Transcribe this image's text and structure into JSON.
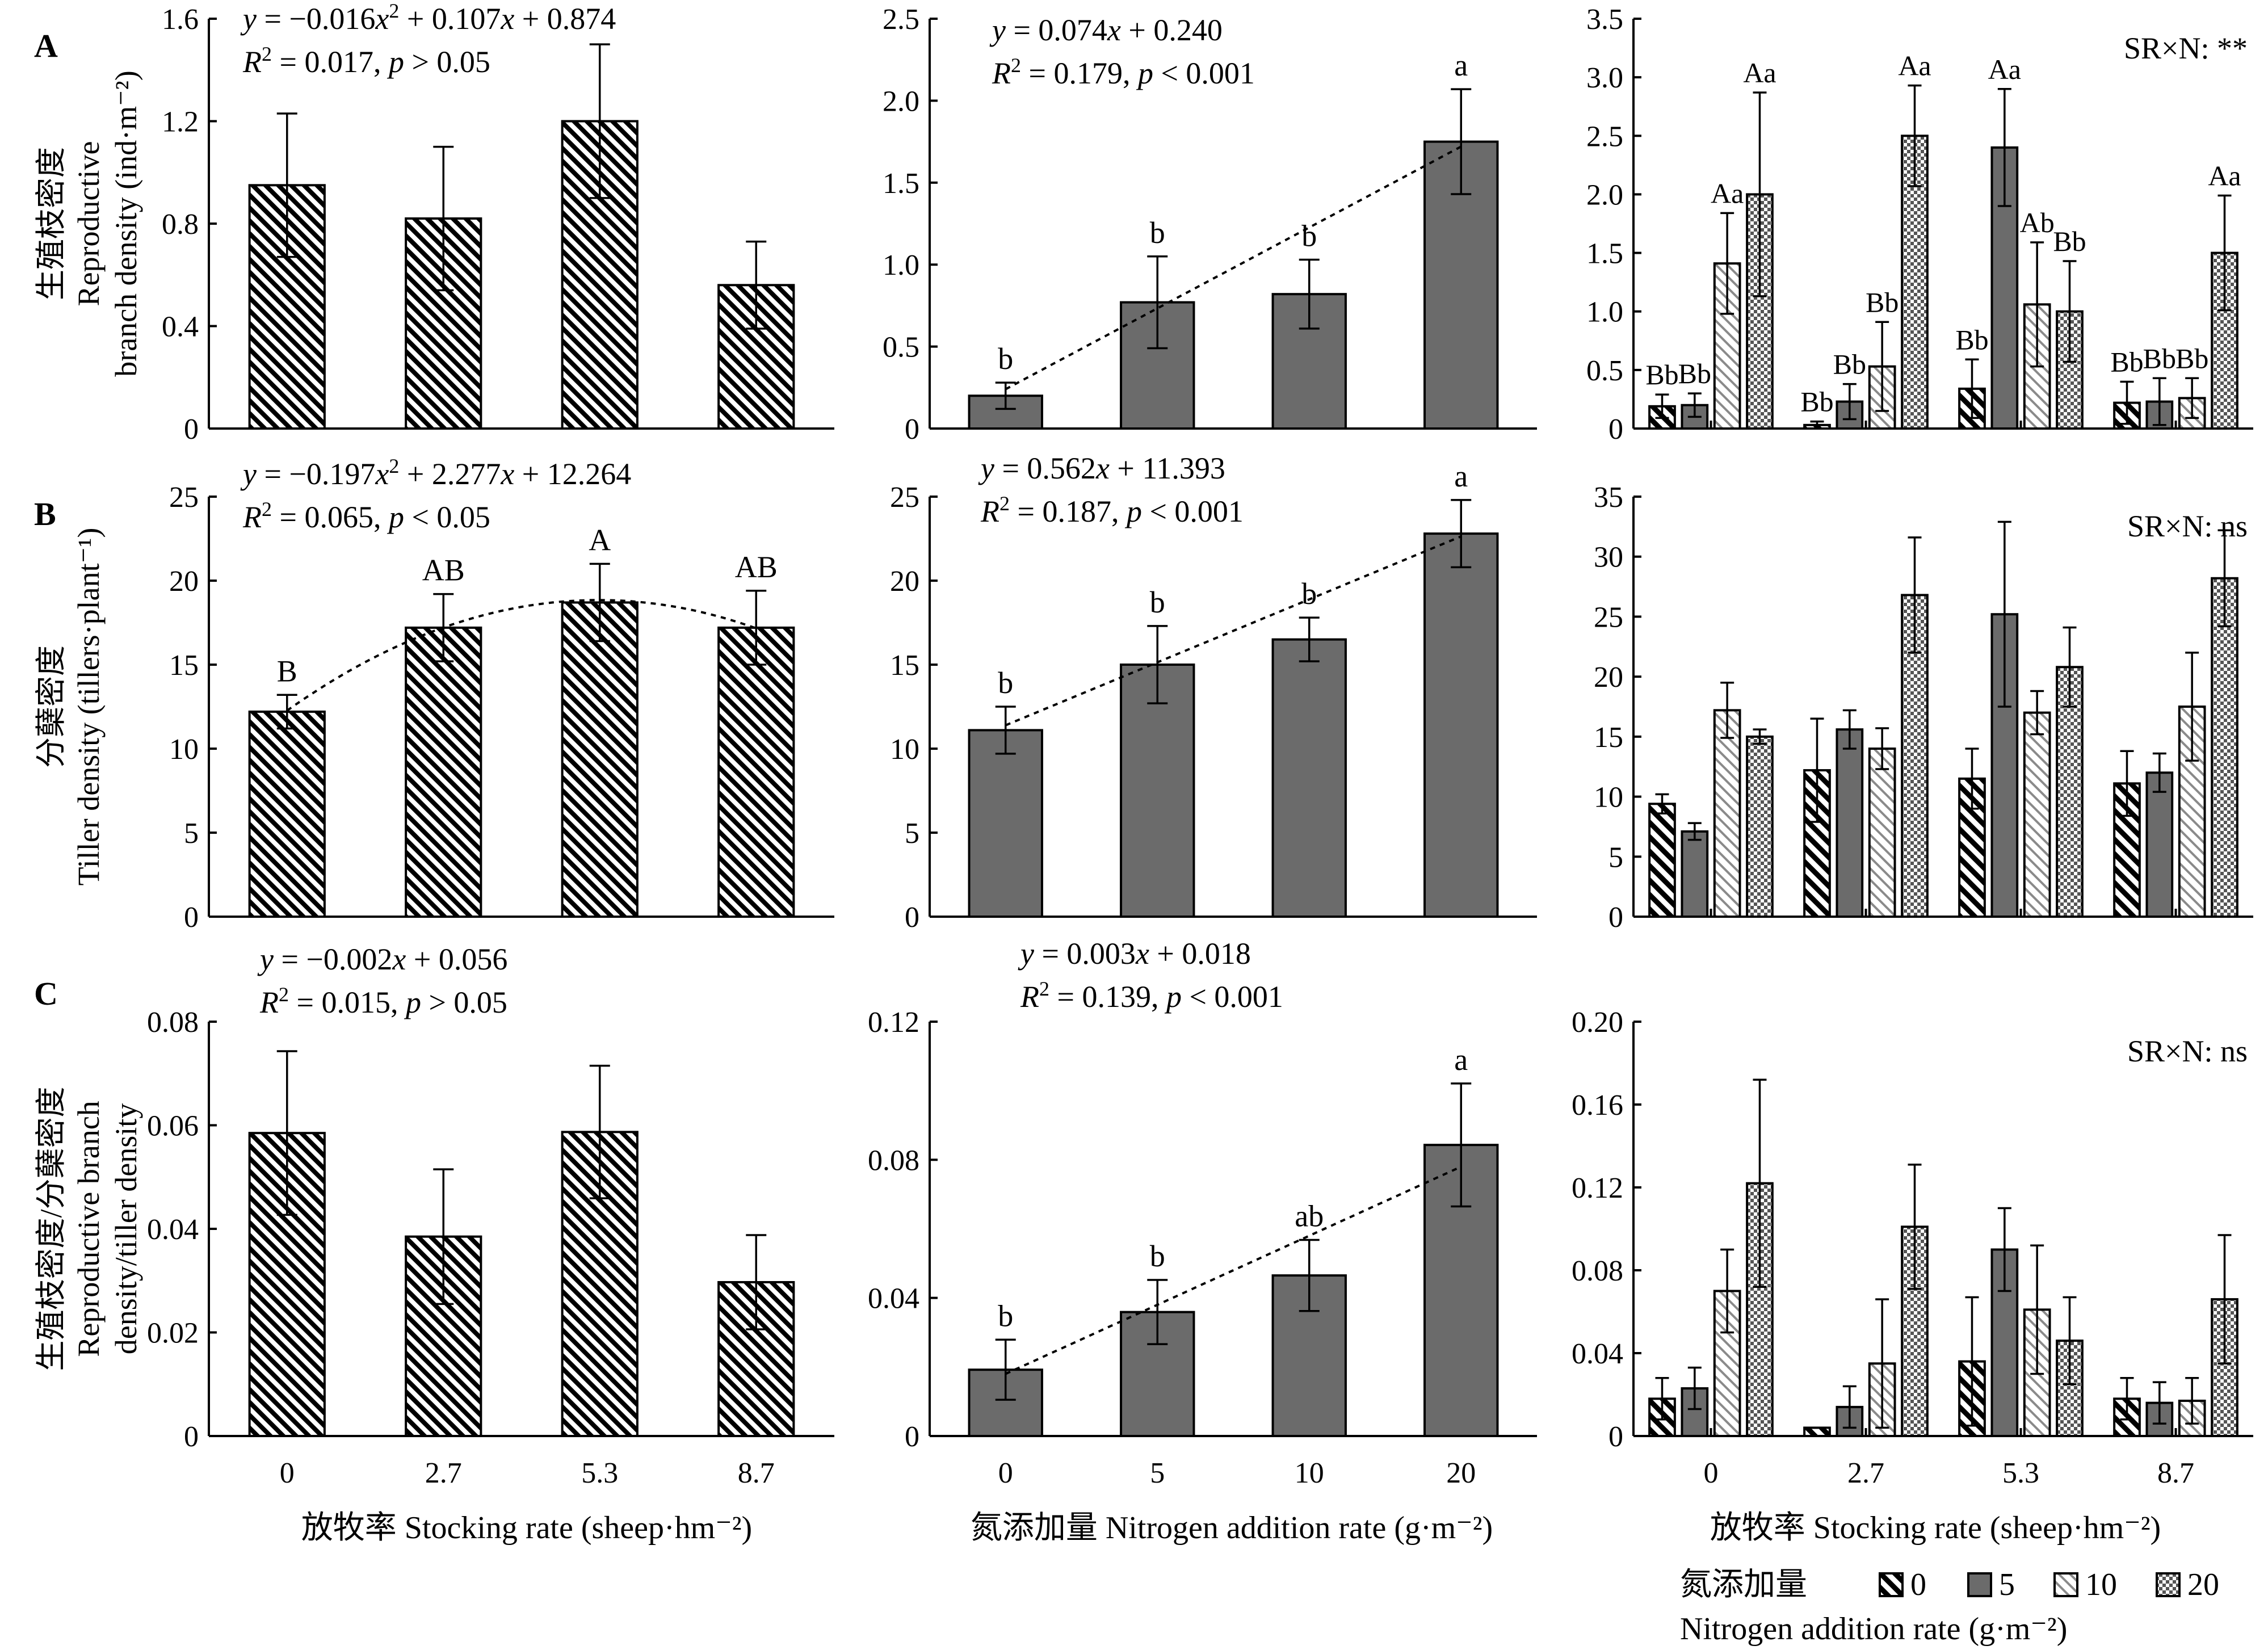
{
  "figure_text": {
    "x_axis_labels": [
      "放牧率 Stocking rate (sheep·hm⁻²)",
      "氮添加量 Nitrogen addition rate (g·m⁻²)",
      "放牧率 Stocking rate (sheep·hm⁻²)"
    ],
    "legend": {
      "title_cn": "氮添加量",
      "title_en": "Nitrogen addition rate (g·m⁻²)",
      "items": [
        "0",
        "5",
        "10",
        "20"
      ]
    }
  },
  "colors": {
    "solid_gray": "#6b6b6b",
    "hatch_black": "#000000",
    "hatch_light_gray": "#8a8a8a",
    "cross_gray": "#555555"
  },
  "chart_data": [
    {
      "id": "A1",
      "row_label": "A",
      "type": "bar",
      "pattern": "diag-dense",
      "ylabel_lines": [
        "生殖枝密度",
        "Reproductive",
        "branch density (ind·m⁻²)"
      ],
      "categories": [
        "0",
        "2.7",
        "5.3",
        "8.7"
      ],
      "values": [
        0.95,
        0.82,
        1.2,
        0.56
      ],
      "errors": [
        0.28,
        0.28,
        0.3,
        0.17
      ],
      "letters": [
        "",
        "",
        "",
        ""
      ],
      "ylim": [
        0,
        1.6
      ],
      "yticks": [
        "0",
        "0.4",
        "0.8",
        "1.2",
        "1.6"
      ],
      "equation": "y = −0.016x² + 0.107x + 0.874",
      "stats": "R² = 0.017, p > 0.05",
      "fit": null
    },
    {
      "id": "A2",
      "type": "bar",
      "pattern": "solid",
      "categories": [
        "0",
        "5",
        "10",
        "20"
      ],
      "values": [
        0.2,
        0.77,
        0.82,
        1.75
      ],
      "errors": [
        0.08,
        0.28,
        0.21,
        0.32
      ],
      "letters": [
        "b",
        "b",
        "b",
        "a"
      ],
      "ylim": [
        0,
        2.5
      ],
      "yticks": [
        "0",
        "0.5",
        "1.0",
        "1.5",
        "2.0",
        "2.5"
      ],
      "equation": "y = 0.074x + 0.240",
      "stats": "R² = 0.179, p < 0.001",
      "fit": {
        "type": "linear",
        "a": 0.074,
        "b": 0.24
      }
    },
    {
      "id": "A3",
      "type": "grouped-bar",
      "annotation": "SR×N: **",
      "categories": [
        "0",
        "2.7",
        "5.3",
        "8.7"
      ],
      "series": [
        {
          "name": "0",
          "values": [
            0.19,
            0.03,
            0.34,
            0.22
          ],
          "errors": [
            0.1,
            0.03,
            0.25,
            0.18
          ],
          "letters": [
            "Bb",
            "Bb",
            "Bb",
            "Bb"
          ]
        },
        {
          "name": "5",
          "values": [
            0.2,
            0.23,
            2.4,
            0.23
          ],
          "errors": [
            0.1,
            0.15,
            0.5,
            0.2
          ],
          "letters": [
            "Bb",
            "Bb",
            "Aa",
            "Bb"
          ]
        },
        {
          "name": "10",
          "values": [
            1.41,
            0.53,
            1.06,
            0.26
          ],
          "errors": [
            0.43,
            0.38,
            0.53,
            0.17
          ],
          "letters": [
            "Aa",
            "Bb",
            "Ab",
            "Bb"
          ]
        },
        {
          "name": "20",
          "values": [
            2.0,
            2.5,
            1.0,
            1.5
          ],
          "errors": [
            0.87,
            0.43,
            0.43,
            0.49
          ],
          "letters": [
            "Aa",
            "Aa",
            "Bb",
            "Aa"
          ]
        }
      ],
      "ylim": [
        0,
        3.5
      ],
      "yticks": [
        "0",
        "0.5",
        "1.0",
        "1.5",
        "2.0",
        "2.5",
        "3.0",
        "3.5"
      ]
    },
    {
      "id": "B1",
      "row_label": "B",
      "type": "bar",
      "pattern": "diag-dense",
      "ylabel_lines": [
        "分蘖密度",
        "Tiller density (tillers·plant⁻¹)"
      ],
      "categories": [
        "0",
        "2.7",
        "5.3",
        "8.7"
      ],
      "values": [
        12.2,
        17.2,
        18.7,
        17.2
      ],
      "errors": [
        1.0,
        2.0,
        2.3,
        2.2
      ],
      "letters": [
        "B",
        "AB",
        "A",
        "AB"
      ],
      "ylim": [
        0,
        25
      ],
      "yticks": [
        "0",
        "5",
        "10",
        "15",
        "20",
        "25"
      ],
      "equation": "y = −0.197x² + 2.277x + 12.264",
      "stats": "R² = 0.065, p < 0.05",
      "fit": {
        "type": "quadratic",
        "a": -0.197,
        "b": 2.277,
        "c": 12.264
      }
    },
    {
      "id": "B2",
      "type": "bar",
      "pattern": "solid",
      "categories": [
        "0",
        "5",
        "10",
        "20"
      ],
      "values": [
        11.1,
        15.0,
        16.5,
        22.8
      ],
      "errors": [
        1.4,
        2.3,
        1.3,
        2.0
      ],
      "letters": [
        "b",
        "b",
        "b",
        "a"
      ],
      "ylim": [
        0,
        25
      ],
      "yticks": [
        "0",
        "5",
        "10",
        "15",
        "20",
        "25"
      ],
      "equation": "y = 0.562x + 11.393",
      "stats": "R² = 0.187, p < 0.001",
      "fit": {
        "type": "linear",
        "a": 0.562,
        "b": 11.393
      }
    },
    {
      "id": "B3",
      "type": "grouped-bar",
      "annotation": "SR×N: ns",
      "categories": [
        "0",
        "2.7",
        "5.3",
        "8.7"
      ],
      "series": [
        {
          "name": "0",
          "values": [
            9.4,
            12.2,
            11.5,
            11.1
          ],
          "errors": [
            0.8,
            4.3,
            2.5,
            2.7
          ],
          "letters": [
            "",
            "",
            "",
            ""
          ]
        },
        {
          "name": "5",
          "values": [
            7.1,
            15.6,
            25.2,
            12.0
          ],
          "errors": [
            0.7,
            1.6,
            7.7,
            1.6
          ],
          "letters": [
            "",
            "",
            "",
            ""
          ]
        },
        {
          "name": "10",
          "values": [
            17.2,
            14.0,
            17.0,
            17.5
          ],
          "errors": [
            2.3,
            1.7,
            1.8,
            4.5
          ],
          "letters": [
            "",
            "",
            "",
            ""
          ]
        },
        {
          "name": "20",
          "values": [
            15.0,
            26.8,
            20.8,
            28.2
          ],
          "errors": [
            0.6,
            4.8,
            3.3,
            4.0
          ],
          "letters": [
            "",
            "",
            "",
            ""
          ]
        }
      ],
      "ylim": [
        0,
        35
      ],
      "yticks": [
        "0",
        "5",
        "10",
        "15",
        "20",
        "25",
        "30",
        "35"
      ]
    },
    {
      "id": "C1",
      "row_label": "C",
      "type": "bar",
      "pattern": "diag-dense",
      "ylabel_lines": [
        "生殖枝密度/分蘖密度",
        "Reproductive branch",
        "density/tiller density"
      ],
      "categories": [
        "0",
        "2.7",
        "5.3",
        "8.7"
      ],
      "values": [
        0.0585,
        0.0385,
        0.0587,
        0.0297
      ],
      "errors": [
        0.0158,
        0.013,
        0.0128,
        0.0091
      ],
      "letters": [
        "",
        "",
        "",
        ""
      ],
      "ylim": [
        0,
        0.08
      ],
      "yticks": [
        "0",
        "0.02",
        "0.04",
        "0.06",
        "0.08"
      ],
      "equation": "y = −0.002x + 0.056",
      "stats": "R² = 0.015, p > 0.05",
      "fit": null
    },
    {
      "id": "C2",
      "type": "bar",
      "pattern": "solid",
      "categories": [
        "0",
        "5",
        "10",
        "20"
      ],
      "values": [
        0.0192,
        0.0359,
        0.0465,
        0.0843
      ],
      "errors": [
        0.0087,
        0.0093,
        0.0103,
        0.0178
      ],
      "letters": [
        "b",
        "b",
        "ab",
        "a"
      ],
      "ylim": [
        0,
        0.12
      ],
      "yticks": [
        "0",
        "0.04",
        "0.08",
        "0.12"
      ],
      "equation": "y = 0.003x + 0.018",
      "stats": "R² = 0.139, p < 0.001",
      "fit": {
        "type": "linear",
        "a": 0.003,
        "b": 0.018
      }
    },
    {
      "id": "C3",
      "type": "grouped-bar",
      "annotation": "SR×N: ns",
      "categories": [
        "0",
        "2.7",
        "5.3",
        "8.7"
      ],
      "series": [
        {
          "name": "0",
          "values": [
            0.018,
            0.004,
            0.036,
            0.018
          ],
          "errors": [
            0.01,
            0.0,
            0.031,
            0.01
          ],
          "letters": [
            "",
            "",
            "",
            ""
          ]
        },
        {
          "name": "5",
          "values": [
            0.023,
            0.014,
            0.09,
            0.016
          ],
          "errors": [
            0.01,
            0.01,
            0.02,
            0.01
          ],
          "letters": [
            "",
            "",
            "",
            ""
          ]
        },
        {
          "name": "10",
          "values": [
            0.07,
            0.035,
            0.061,
            0.017
          ],
          "errors": [
            0.02,
            0.031,
            0.031,
            0.011
          ],
          "letters": [
            "",
            "",
            "",
            ""
          ]
        },
        {
          "name": "20",
          "values": [
            0.122,
            0.101,
            0.046,
            0.066
          ],
          "errors": [
            0.05,
            0.03,
            0.021,
            0.031
          ],
          "letters": [
            "",
            "",
            "",
            ""
          ]
        }
      ],
      "ylim": [
        0,
        0.2
      ],
      "yticks": [
        "0",
        "0.04",
        "0.08",
        "0.12",
        "0.16",
        "0.20"
      ]
    }
  ]
}
